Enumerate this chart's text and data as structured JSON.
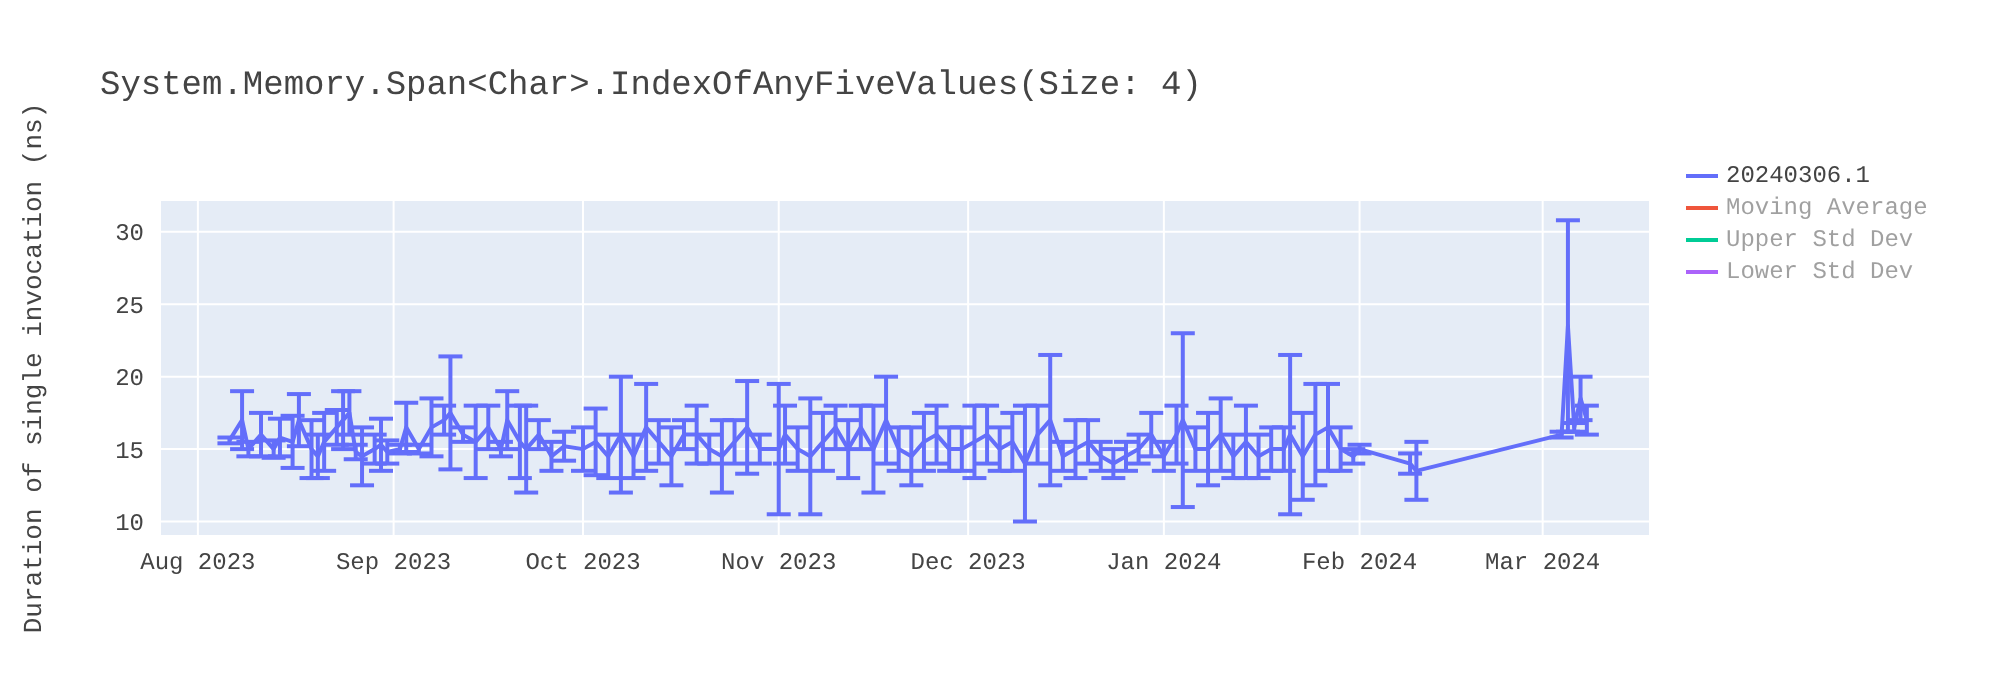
{
  "chart_data": {
    "type": "line",
    "title": "System.Memory.Span<Char>.IndexOfAnyFiveValues(Size: 4)",
    "ylabel": "Duration of single invocation (ns)",
    "x": [
      "2023-08-06",
      "2023-08-08",
      "2023-08-09",
      "2023-08-11",
      "2023-08-13",
      "2023-08-14",
      "2023-08-16",
      "2023-08-17",
      "2023-08-19",
      "2023-08-20",
      "2023-08-21",
      "2023-08-23",
      "2023-08-24",
      "2023-08-25",
      "2023-08-26",
      "2023-08-27",
      "2023-08-29",
      "2023-08-30",
      "2023-08-31",
      "2023-09-02",
      "2023-09-03",
      "2023-09-05",
      "2023-09-07",
      "2023-09-09",
      "2023-09-10",
      "2023-09-12",
      "2023-09-14",
      "2023-09-16",
      "2023-09-18",
      "2023-09-19",
      "2023-09-21",
      "2023-09-22",
      "2023-09-24",
      "2023-09-26",
      "2023-09-28",
      "2023-10-01",
      "2023-10-03",
      "2023-10-05",
      "2023-10-07",
      "2023-10-09",
      "2023-10-11",
      "2023-10-13",
      "2023-10-15",
      "2023-10-17",
      "2023-10-19",
      "2023-10-21",
      "2023-10-23",
      "2023-10-25",
      "2023-10-27",
      "2023-10-29",
      "2023-11-01",
      "2023-11-02",
      "2023-11-04",
      "2023-11-06",
      "2023-11-08",
      "2023-11-10",
      "2023-11-12",
      "2023-11-14",
      "2023-11-16",
      "2023-11-18",
      "2023-11-20",
      "2023-11-22",
      "2023-11-24",
      "2023-11-26",
      "2023-11-28",
      "2023-11-30",
      "2023-12-02",
      "2023-12-04",
      "2023-12-06",
      "2023-12-08",
      "2023-12-10",
      "2023-12-12",
      "2023-12-14",
      "2023-12-16",
      "2023-12-18",
      "2023-12-20",
      "2023-12-22",
      "2023-12-24",
      "2023-12-26",
      "2023-12-28",
      "2023-12-30",
      "2024-01-01",
      "2024-01-03",
      "2024-01-04",
      "2024-01-06",
      "2024-01-08",
      "2024-01-10",
      "2024-01-12",
      "2024-01-14",
      "2024-01-16",
      "2024-01-18",
      "2024-01-20",
      "2024-01-21",
      "2024-01-23",
      "2024-01-25",
      "2024-01-27",
      "2024-01-29",
      "2024-01-31",
      "2024-02-01",
      "2024-02-09",
      "2024-02-10",
      "2024-03-04",
      "2024-03-05",
      "2024-03-06",
      "2024-03-07",
      "2024-03-08"
    ],
    "series": [
      {
        "name": "20240306.1",
        "color": "#636efa",
        "values": [
          15.6,
          17,
          15,
          16,
          15,
          15.8,
          15.5,
          17,
          15,
          14.5,
          15.5,
          16.5,
          17,
          17.5,
          14.8,
          14.5,
          15,
          15.3,
          14.8,
          15,
          16.5,
          15,
          16.5,
          17,
          17.5,
          16,
          15.5,
          16.5,
          15,
          17,
          15.5,
          15,
          16,
          14.5,
          15.2,
          15,
          15.5,
          14.5,
          16,
          14.5,
          16.5,
          15.5,
          14.5,
          16,
          16,
          15,
          14.5,
          15.5,
          16.5,
          15,
          15,
          16,
          15,
          14.5,
          15.5,
          16.5,
          15,
          16.5,
          15,
          17,
          15,
          14.5,
          15.5,
          16,
          15,
          15,
          15.5,
          16,
          15,
          15.5,
          14,
          16,
          17,
          14.5,
          15,
          15.5,
          14.5,
          14,
          14.5,
          15,
          16,
          14.5,
          16,
          17,
          15,
          15,
          16,
          14.5,
          15.5,
          14.5,
          15,
          15,
          16,
          14.5,
          16,
          16.5,
          15,
          14.5,
          15,
          14,
          13.5,
          16,
          23.5,
          16.5,
          18.5,
          17
        ],
        "errors": [
          0.2,
          2,
          0.5,
          1.5,
          0.6,
          1.3,
          1.8,
          1.8,
          2,
          1.5,
          2,
          1.2,
          2,
          1.5,
          0.5,
          2,
          1,
          1.8,
          0.8,
          0.3,
          1.7,
          0.3,
          2,
          1,
          3.9,
          0.5,
          2.5,
          1.5,
          0.5,
          2,
          2.5,
          3,
          1,
          1,
          1,
          1.5,
          2.3,
          1.5,
          4,
          1.5,
          3,
          1.5,
          2,
          1,
          2,
          1,
          2.5,
          1.5,
          3.2,
          1,
          4.5,
          2,
          1.5,
          4,
          2,
          1.5,
          2,
          1.5,
          3,
          3,
          1.5,
          2,
          2,
          2,
          1.5,
          1.5,
          2.5,
          2,
          1.5,
          2,
          4,
          2,
          4.5,
          1,
          2,
          1.5,
          1,
          1,
          1,
          1,
          1.5,
          1,
          2,
          6,
          1.5,
          2.5,
          2.5,
          1.5,
          2.5,
          1.5,
          1.5,
          1.5,
          5.5,
          3,
          3.5,
          3,
          1.5,
          0.5,
          0.3,
          0.7,
          2,
          0.2,
          7.3,
          0.3,
          1.5,
          1
        ]
      },
      {
        "name": "Moving Average",
        "color": "#ef553b",
        "values": [
          null,
          null,
          null,
          null,
          null,
          null,
          null,
          null,
          null,
          null,
          null,
          null,
          null,
          null,
          null,
          null,
          null,
          null,
          null,
          null,
          null,
          null,
          null,
          null,
          null,
          null,
          null,
          null,
          null,
          null,
          null,
          null,
          null,
          null,
          null,
          null,
          null,
          null,
          null,
          null,
          null,
          null,
          null,
          null,
          null,
          null,
          null,
          null,
          null,
          null,
          null,
          null,
          null,
          null,
          null,
          null,
          null,
          null,
          null,
          null,
          null,
          null,
          null,
          null,
          null,
          null,
          null,
          null,
          null,
          null,
          null,
          null,
          null,
          null,
          null,
          null,
          null,
          null,
          null,
          null,
          null,
          null,
          null,
          null,
          null,
          null,
          null,
          null,
          null,
          null,
          null,
          null,
          null,
          null,
          null,
          null,
          null,
          null,
          null,
          null,
          null,
          null,
          null,
          null,
          null,
          null
        ]
      },
      {
        "name": "Upper Std Dev",
        "color": "#00cc96",
        "values": [
          null,
          null,
          null,
          null,
          null,
          null,
          null,
          null,
          null,
          null,
          null,
          null,
          null,
          null,
          null,
          null,
          null,
          null,
          null,
          null,
          null,
          null,
          null,
          null,
          null,
          null,
          null,
          null,
          null,
          null,
          null,
          null,
          null,
          null,
          null,
          null,
          null,
          null,
          null,
          null,
          null,
          null,
          null,
          null,
          null,
          null,
          null,
          null,
          null,
          null,
          null,
          null,
          null,
          null,
          null,
          null,
          null,
          null,
          null,
          null,
          null,
          null,
          null,
          null,
          null,
          null,
          null,
          null,
          null,
          null,
          null,
          null,
          null,
          null,
          null,
          null,
          null,
          null,
          null,
          null,
          null,
          null,
          null,
          null,
          null,
          null,
          null,
          null,
          null,
          null,
          null,
          null,
          null,
          null,
          null,
          null,
          null,
          null,
          null,
          null,
          null,
          null,
          null,
          null,
          null,
          null
        ]
      },
      {
        "name": "Lower Std Dev",
        "color": "#ab63fa",
        "values": [
          null,
          null,
          null,
          null,
          null,
          null,
          null,
          null,
          null,
          null,
          null,
          null,
          null,
          null,
          null,
          null,
          null,
          null,
          null,
          null,
          null,
          null,
          null,
          null,
          null,
          null,
          null,
          null,
          null,
          null,
          null,
          null,
          null,
          null,
          null,
          null,
          null,
          null,
          null,
          null,
          null,
          null,
          null,
          null,
          null,
          null,
          null,
          null,
          null,
          null,
          null,
          null,
          null,
          null,
          null,
          null,
          null,
          null,
          null,
          null,
          null,
          null,
          null,
          null,
          null,
          null,
          null,
          null,
          null,
          null,
          null,
          null,
          null,
          null,
          null,
          null,
          null,
          null,
          null,
          null,
          null,
          null,
          null,
          null,
          null,
          null,
          null,
          null,
          null,
          null,
          null,
          null,
          null,
          null,
          null,
          null,
          null,
          null,
          null,
          null,
          null,
          null,
          null,
          null,
          null,
          null
        ]
      }
    ],
    "xlim": [
      "2023-07-26",
      "2024-03-18"
    ],
    "xticks": [
      {
        "value": "2023-08-01",
        "label": "Aug 2023"
      },
      {
        "value": "2023-09-01",
        "label": "Sep 2023"
      },
      {
        "value": "2023-10-01",
        "label": "Oct 2023"
      },
      {
        "value": "2023-11-01",
        "label": "Nov 2023"
      },
      {
        "value": "2023-12-01",
        "label": "Dec 2023"
      },
      {
        "value": "2024-01-01",
        "label": "Jan 2024"
      },
      {
        "value": "2024-02-01",
        "label": "Feb 2024"
      },
      {
        "value": "2024-03-01",
        "label": "Mar 2024"
      }
    ],
    "ylim": [
      9,
      32.2
    ],
    "yticks": [
      10,
      15,
      20,
      25,
      30
    ],
    "grid": true,
    "legend": "top right",
    "marker": "none",
    "line_style": "solid"
  }
}
